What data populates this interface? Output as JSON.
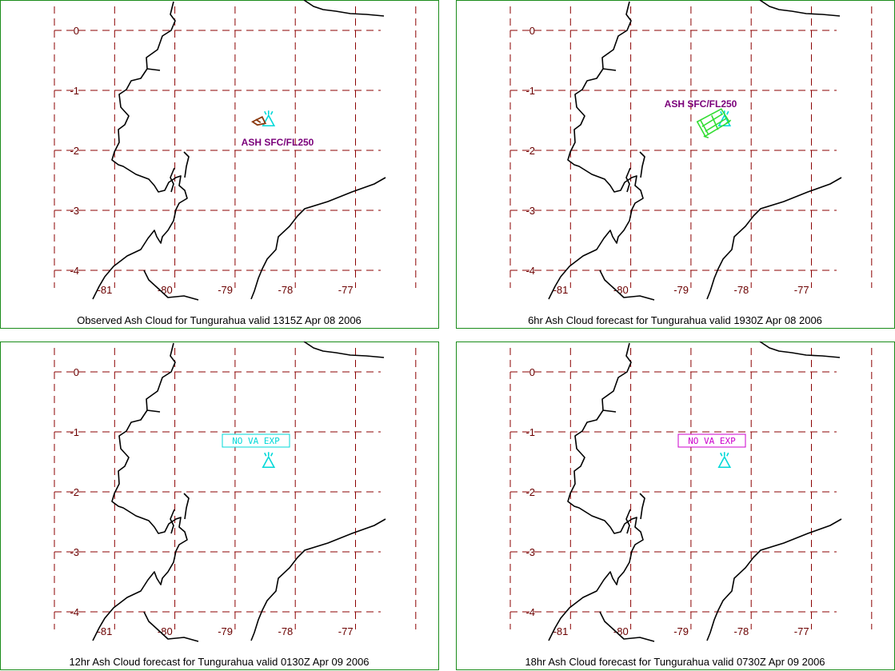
{
  "colors": {
    "frame": "#1a8c1a",
    "grid": "#8b0000",
    "tick_text": "#6b0000",
    "coast": "#000000",
    "ash_label": "#7a007a",
    "volcano": "#00d8d8",
    "cloud_obs": "#8b3a10",
    "cloud_fcst": "#33dd33",
    "nova_cyan": "#00d8d8",
    "nova_magenta": "#cc00cc"
  },
  "map": {
    "lat_ticks": [
      "0",
      "-1",
      "-2",
      "-3",
      "-4"
    ],
    "lon_ticks": [
      "-81",
      "-80",
      "-79",
      "-78",
      "-77"
    ],
    "volcano": {
      "name": "Tungurahua",
      "lat": -1.47,
      "lon": -78.44
    }
  },
  "panels": [
    {
      "id": "obs",
      "caption": "Observed Ash Cloud for Tungurahua valid 1315Z Apr 08 2006",
      "label": "ASH SFC/FL250",
      "label_type": "ash",
      "cloud": "obs"
    },
    {
      "id": "fc6",
      "caption": "6hr Ash Cloud forecast for Tungurahua valid 1930Z Apr 08 2006",
      "label": "ASH SFC/FL250",
      "label_type": "ash",
      "cloud": "fcst"
    },
    {
      "id": "fc12",
      "caption": "12hr Ash Cloud forecast for Tungurahua valid 0130Z Apr 09 2006",
      "label": "NO VA EXP",
      "label_type": "nova",
      "label_color": "#00d8d8",
      "cloud": "none"
    },
    {
      "id": "fc18",
      "caption": "18hr Ash Cloud forecast for Tungurahua valid 0730Z Apr 09 2006",
      "label": "NO VA EXP",
      "label_type": "nova",
      "label_color": "#cc00cc",
      "cloud": "none"
    }
  ]
}
